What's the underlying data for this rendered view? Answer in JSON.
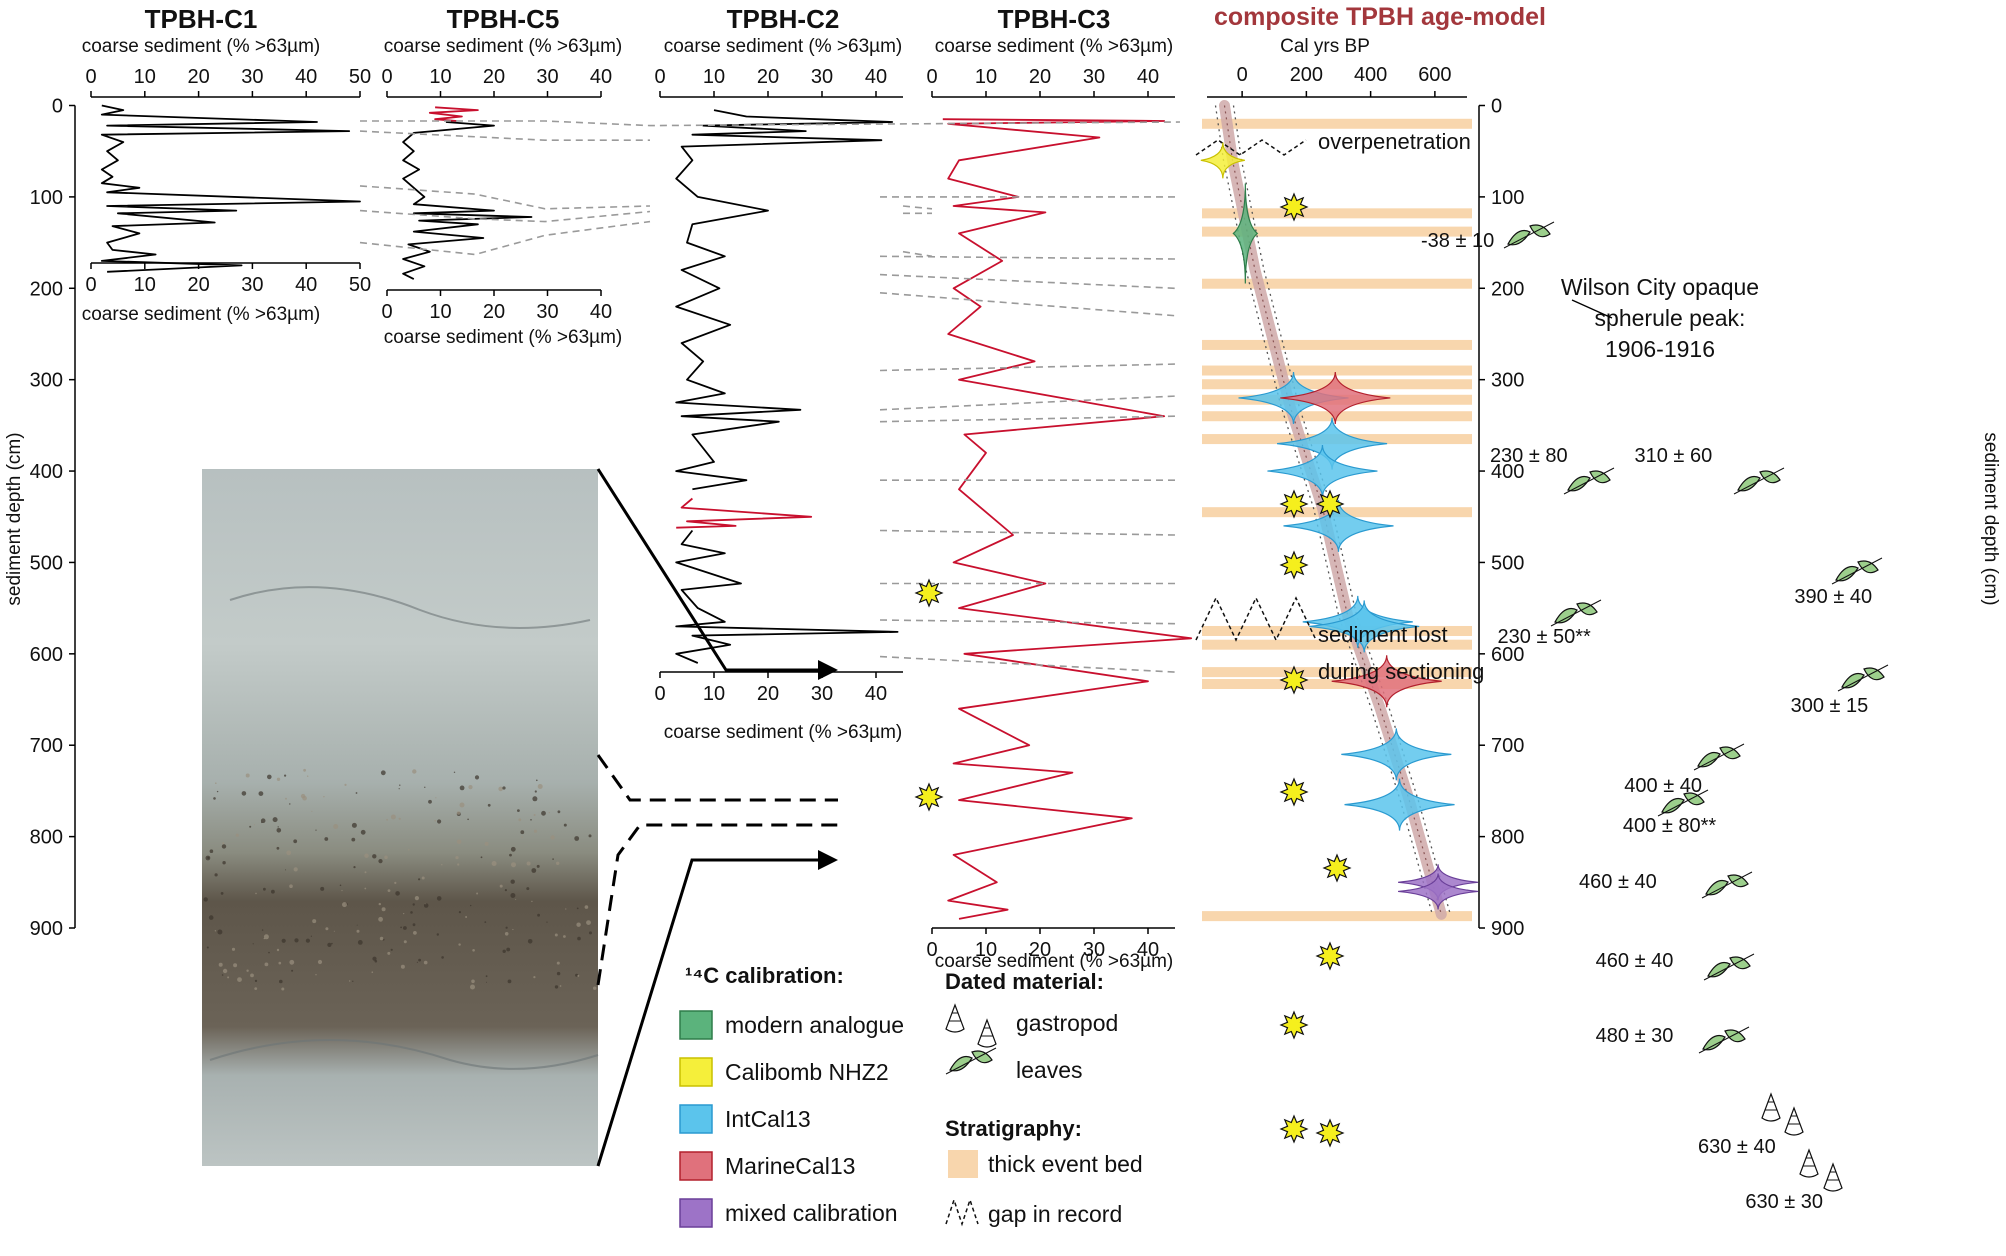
{
  "chart_data": [
    {
      "type": "line",
      "title": "TPBH-C1",
      "xlabel": "coarse sediment (% >63µm)",
      "xlim": [
        0,
        50
      ],
      "xticks": [
        0,
        10,
        20,
        30,
        40,
        50
      ],
      "depth_range_cm": [
        0,
        193
      ],
      "series": [
        {
          "color": "#000000",
          "values": [
            [
              2,
              0
            ],
            [
              6,
              5
            ],
            [
              2,
              10
            ],
            [
              42,
              18
            ],
            [
              3,
              22
            ],
            [
              48,
              28
            ],
            [
              2,
              32
            ],
            [
              6,
              40
            ],
            [
              3,
              50
            ],
            [
              5,
              60
            ],
            [
              2,
              70
            ],
            [
              4,
              78
            ],
            [
              2,
              85
            ],
            [
              9,
              90
            ],
            [
              3,
              95
            ],
            [
              50,
              105
            ],
            [
              3,
              110
            ],
            [
              27,
              115
            ],
            [
              5,
              118
            ],
            [
              23,
              128
            ],
            [
              4,
              132
            ],
            [
              9,
              140
            ],
            [
              3,
              150
            ],
            [
              4,
              158
            ],
            [
              12,
              163
            ],
            [
              2,
              170
            ],
            [
              28,
              175
            ],
            [
              3,
              182
            ]
          ]
        }
      ]
    },
    {
      "type": "line",
      "title": "TPBH-C5",
      "xlabel": "coarse sediment (% >63µm)",
      "xlim": [
        0,
        40
      ],
      "xticks": [
        0,
        10,
        20,
        30,
        40
      ],
      "depth_range_cm": [
        0,
        193
      ],
      "series": [
        {
          "color": "#c8102e",
          "values": [
            [
              9,
              2
            ],
            [
              17,
              5
            ],
            [
              8,
              8
            ],
            [
              14,
              12
            ],
            [
              9,
              15
            ],
            [
              13,
              17
            ]
          ]
        },
        {
          "color": "#000000",
          "values": [
            [
              11,
              18
            ],
            [
              20,
              22
            ],
            [
              5,
              30
            ],
            [
              3,
              40
            ],
            [
              5,
              50
            ],
            [
              3,
              60
            ],
            [
              6,
              70
            ],
            [
              3,
              80
            ],
            [
              5,
              90
            ],
            [
              7,
              100
            ],
            [
              5,
              108
            ],
            [
              20,
              115
            ],
            [
              5,
              118
            ],
            [
              27,
              122
            ],
            [
              6,
              126
            ],
            [
              17,
              130
            ],
            [
              5,
              138
            ],
            [
              18,
              145
            ],
            [
              4,
              152
            ],
            [
              8,
              160
            ],
            [
              3,
              168
            ],
            [
              7,
              176
            ],
            [
              3,
              184
            ],
            [
              5,
              190
            ]
          ]
        }
      ]
    },
    {
      "type": "line",
      "title": "TPBH-C2",
      "xlabel": "coarse sediment (% >63µm)",
      "xlim": [
        0,
        45
      ],
      "xticks": [
        0,
        10,
        20,
        30,
        40
      ],
      "depth_range_cm": [
        0,
        615
      ],
      "series": [
        {
          "color": "#000000",
          "values": [
            [
              10,
              5
            ],
            [
              16,
              12
            ],
            [
              43,
              18
            ],
            [
              8,
              22
            ],
            [
              27,
              28
            ],
            [
              6,
              32
            ],
            [
              41,
              38
            ],
            [
              4,
              45
            ],
            [
              6,
              60
            ],
            [
              3,
              80
            ],
            [
              7,
              100
            ],
            [
              20,
              115
            ],
            [
              6,
              130
            ],
            [
              5,
              150
            ],
            [
              12,
              165
            ],
            [
              4,
              180
            ],
            [
              11,
              200
            ],
            [
              3,
              220
            ],
            [
              13,
              240
            ],
            [
              4,
              260
            ],
            [
              8,
              280
            ],
            [
              5,
              300
            ],
            [
              12,
              315
            ],
            [
              3,
              325
            ],
            [
              26,
              333
            ],
            [
              4,
              340
            ],
            [
              22,
              346
            ],
            [
              6,
              360
            ],
            [
              10,
              390
            ],
            [
              3,
              400
            ],
            [
              16,
              410
            ],
            [
              6,
              420
            ]
          ]
        },
        {
          "color": "#c8102e",
          "values": [
            [
              6,
              430
            ],
            [
              4,
              440
            ],
            [
              28,
              450
            ],
            [
              5,
              455
            ],
            [
              14,
              460
            ],
            [
              3,
              462
            ]
          ]
        },
        {
          "color": "#000000",
          "values": [
            [
              6,
              465
            ],
            [
              4,
              480
            ],
            [
              12,
              490
            ],
            [
              3,
              500
            ],
            [
              15,
              523
            ],
            [
              4,
              530
            ],
            [
              7,
              550
            ],
            [
              12,
              565
            ],
            [
              3,
              570
            ],
            [
              44,
              576
            ],
            [
              6,
              580
            ],
            [
              13,
              590
            ],
            [
              3,
              600
            ],
            [
              7,
              610
            ]
          ]
        }
      ]
    },
    {
      "type": "line",
      "title": "TPBH-C3",
      "xlabel": "coarse sediment (% >63µm)",
      "xlim": [
        0,
        45
      ],
      "xticks": [
        0,
        10,
        20,
        30,
        40
      ],
      "depth_range_cm": [
        0,
        900
      ],
      "series": [
        {
          "color": "#c8102e",
          "values": [
            [
              2,
              15
            ],
            [
              43,
              17
            ],
            [
              3,
              20
            ],
            [
              31,
              35
            ],
            [
              5,
              60
            ],
            [
              3,
              80
            ],
            [
              16,
              100
            ],
            [
              4,
              110
            ],
            [
              21,
              117
            ],
            [
              5,
              140
            ],
            [
              13,
              170
            ],
            [
              4,
              200
            ],
            [
              9,
              220
            ],
            [
              3,
              250
            ],
            [
              19,
              280
            ],
            [
              5,
              300
            ],
            [
              43,
              340
            ],
            [
              6,
              360
            ],
            [
              10,
              380
            ],
            [
              5,
              420
            ],
            [
              15,
              470
            ],
            [
              4,
              500
            ],
            [
              21,
              523
            ],
            [
              5,
              550
            ],
            [
              48,
              583
            ],
            [
              6,
              600
            ],
            [
              40,
              630
            ],
            [
              5,
              660
            ],
            [
              18,
              700
            ],
            [
              4,
              720
            ],
            [
              26,
              730
            ],
            [
              5,
              760
            ],
            [
              37,
              780
            ],
            [
              4,
              820
            ],
            [
              12,
              850
            ],
            [
              3,
              870
            ],
            [
              14,
              880
            ],
            [
              5,
              890
            ]
          ]
        }
      ]
    },
    {
      "type": "scatter",
      "title": "composite TPBH age-model",
      "xlabel": "Cal yrs BP",
      "ylabel": "sediment depth (cm)",
      "xlim": [
        -100,
        700
      ],
      "ylim": [
        0,
        900
      ],
      "xticks": [
        0,
        200,
        400,
        600
      ],
      "yticks": [
        0,
        100,
        200,
        300,
        400,
        500,
        600,
        700,
        800,
        900
      ],
      "dates": [
        {
          "label": "-38 ± 10",
          "age": -60,
          "depth": 60,
          "calibration": "Calibomb NHZ2",
          "material": "leaves"
        },
        {
          "label": "Wilson City opaque spherule peak: 1906-1916",
          "age": 10,
          "depth": 140,
          "calibration": "modern analogue",
          "material": ""
        },
        {
          "label": "230 ± 80",
          "age": 160,
          "depth": 320,
          "calibration": "IntCal13",
          "material": "leaves"
        },
        {
          "label": "310 ± 60",
          "age": 290,
          "depth": 320,
          "calibration": "MarineCal13",
          "material": "leaves"
        },
        {
          "label": "390 ± 40",
          "age": 280,
          "depth": 370,
          "calibration": "IntCal13",
          "material": "leaves"
        },
        {
          "label": "230 ± 50**",
          "age": 250,
          "depth": 400,
          "calibration": "IntCal13",
          "material": "leaves"
        },
        {
          "label": "300 ± 15",
          "age": 300,
          "depth": 460,
          "calibration": "IntCal13",
          "material": "leaves"
        },
        {
          "label": "400 ± 40",
          "age": 360,
          "depth": 565,
          "calibration": "IntCal13",
          "material": "leaves"
        },
        {
          "label": "400 ± 80**",
          "age": 380,
          "depth": 570,
          "calibration": "IntCal13",
          "material": "leaves"
        },
        {
          "label": "460 ± 40",
          "age": 450,
          "depth": 630,
          "calibration": "MarineCal13",
          "material": "leaves"
        },
        {
          "label": "460 ± 40",
          "age": 480,
          "depth": 710,
          "calibration": "IntCal13",
          "material": "leaves"
        },
        {
          "label": "480 ± 30",
          "age": 490,
          "depth": 765,
          "calibration": "IntCal13",
          "material": "leaves"
        },
        {
          "label": "630 ± 40",
          "age": 610,
          "depth": 850,
          "calibration": "mixed calibration",
          "material": "gastropod"
        },
        {
          "label": "630 ± 30",
          "age": 610,
          "depth": 860,
          "calibration": "mixed calibration",
          "material": "gastropod"
        }
      ],
      "event_beds_depth_cm": [
        20,
        118,
        138,
        195,
        262,
        290,
        305,
        322,
        340,
        365,
        445,
        575,
        590,
        620,
        633,
        887
      ]
    }
  ],
  "overpenetration_label": "overpenetration",
  "sediment_lost_label_1": "sediment lost",
  "sediment_lost_label_2": "during sectioning",
  "legend": {
    "calib_title": "¹⁴C calibration:",
    "calib": [
      {
        "label": "modern analogue",
        "color": "#5bb37c"
      },
      {
        "label": "Calibomb NHZ2",
        "color": "#f5ef3a"
      },
      {
        "label": "IntCal13",
        "color": "#5bc4ec"
      },
      {
        "label": "MarineCal13",
        "color": "#e0717c"
      },
      {
        "label": "mixed calibration",
        "color": "#9d73c7"
      }
    ],
    "material_title": "Dated material:",
    "gastropod": "gastropod",
    "leaves": "leaves",
    "strat_title": "Stratigraphy:",
    "event_bed": "thick event bed",
    "gap": "gap in record",
    "event_bed_color": "#f8d6ad"
  }
}
